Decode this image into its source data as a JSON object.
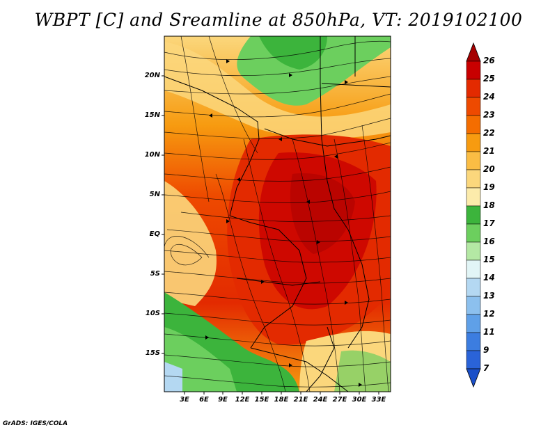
{
  "title": "WBPT [C] and Sreamline at 850hPa, VT: 2019102100",
  "credit": "GrADS: IGES/COLA",
  "lat_labels": [
    "20N",
    "15N",
    "10N",
    "5N",
    "EQ",
    "5S",
    "10S",
    "15S"
  ],
  "lon_labels": [
    "3E",
    "6E",
    "9E",
    "12E",
    "15E",
    "18E",
    "21E",
    "24E",
    "27E",
    "30E",
    "33E"
  ],
  "colorbar": {
    "labels": [
      "26",
      "25",
      "24",
      "23",
      "22",
      "21",
      "20",
      "19",
      "18",
      "17",
      "16",
      "15",
      "14",
      "13",
      "12",
      "11",
      "9",
      "7"
    ],
    "colors": [
      "#a50000",
      "#c80000",
      "#e32a00",
      "#ee4a00",
      "#f46d00",
      "#f79b10",
      "#fbbd44",
      "#fbd77c",
      "#fcebab",
      "#3cb43c",
      "#6ccf5e",
      "#b4e8a4",
      "#e2f5f6",
      "#b4d8f2",
      "#8cc0ee",
      "#5fa0e8",
      "#3c7de0",
      "#2a63d8",
      "#1a4fc8"
    ]
  }
}
